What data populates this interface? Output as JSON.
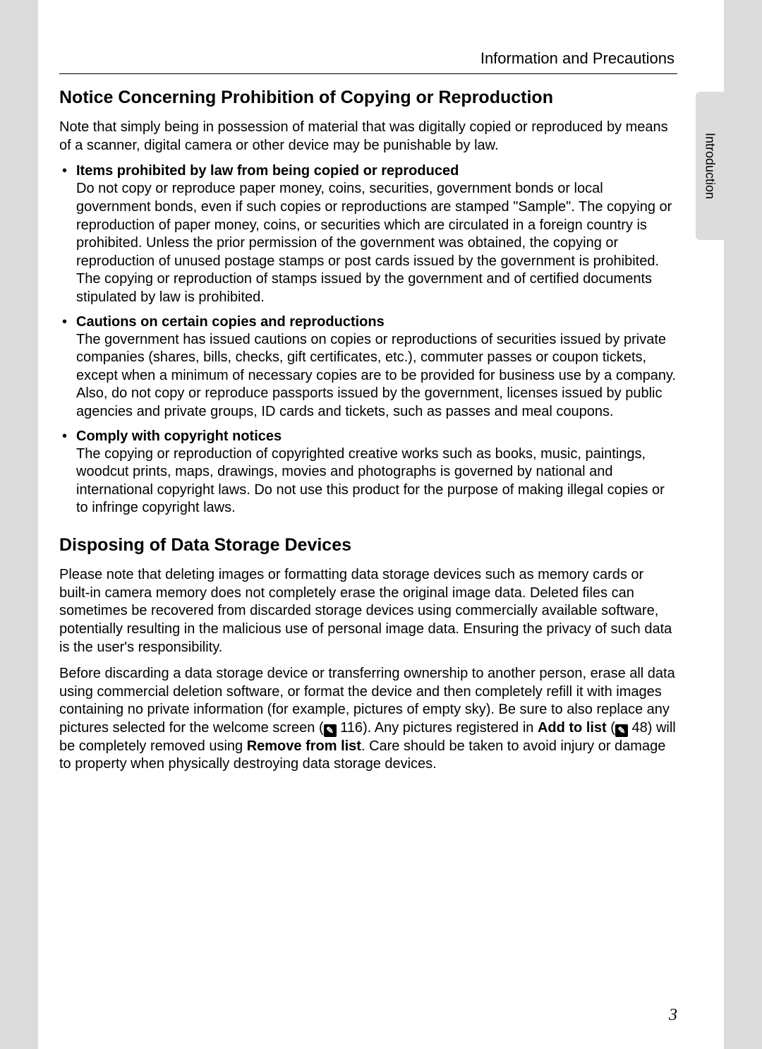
{
  "running_head": "Information and Precautions",
  "side_tab": "Introduction",
  "page_number": "3",
  "section1": {
    "title": "Notice Concerning Prohibition of Copying or Reproduction",
    "lead": "Note that simply being in possession of material that was digitally copied or reproduced by means of a scanner, digital camera or other device may be punishable by law.",
    "items": [
      {
        "title": "Items prohibited by law from being copied or reproduced",
        "body": "Do not copy or reproduce paper money, coins, securities, government bonds or local government bonds, even if such copies or reproductions are stamped \"Sample\". The copying or reproduction of paper money, coins, or securities which are circulated in a foreign country is prohibited. Unless the prior permission of the government was obtained, the copying or reproduction of unused postage stamps or post cards issued by the government is prohibited. The copying or reproduction of stamps issued by the government and of certified documents stipulated by law is prohibited."
      },
      {
        "title": "Cautions on certain copies and reproductions",
        "body": "The government has issued cautions on copies or reproductions of securities issued by private companies (shares, bills, checks, gift certificates, etc.), commuter passes or coupon tickets, except when a minimum of necessary copies are to be provided for business use by a company. Also, do not copy or reproduce passports issued by the government, licenses issued by public agencies and private groups, ID cards and tickets, such as passes and meal coupons."
      },
      {
        "title": "Comply with copyright notices",
        "body": "The copying or reproduction of copyrighted creative works such as books, music, paintings, woodcut prints, maps, drawings, movies and photographs is governed by national and international copyright laws. Do not use this product for the purpose of making illegal copies or to infringe copyright laws."
      }
    ]
  },
  "section2": {
    "title": "Disposing of Data Storage Devices",
    "para1": "Please note that deleting images or formatting data storage devices such as memory cards or built-in camera memory does not completely erase the original image data. Deleted files can sometimes be recovered from discarded storage devices using commercially available software, potentially resulting in the malicious use of personal image data. Ensuring the privacy of such data is the user's responsibility.",
    "para2_a": "Before discarding a data storage device or transferring ownership to another person, erase all data using commercial deletion software, or format the device and then completely refill it with images containing no private information (for example, pictures of empty sky). Be sure to also replace any pictures selected for the welcome screen (",
    "ref1": "116",
    "para2_b": "). Any pictures registered in ",
    "add_to_list": "Add to list",
    "para2_c": " (",
    "ref2": "48",
    "para2_d": ") will be completely removed using ",
    "remove_from_list": "Remove from list",
    "para2_e": ". Care should be taken to avoid injury or damage to property when physically destroying data storage devices."
  },
  "ref_icon_glyph": "✎"
}
